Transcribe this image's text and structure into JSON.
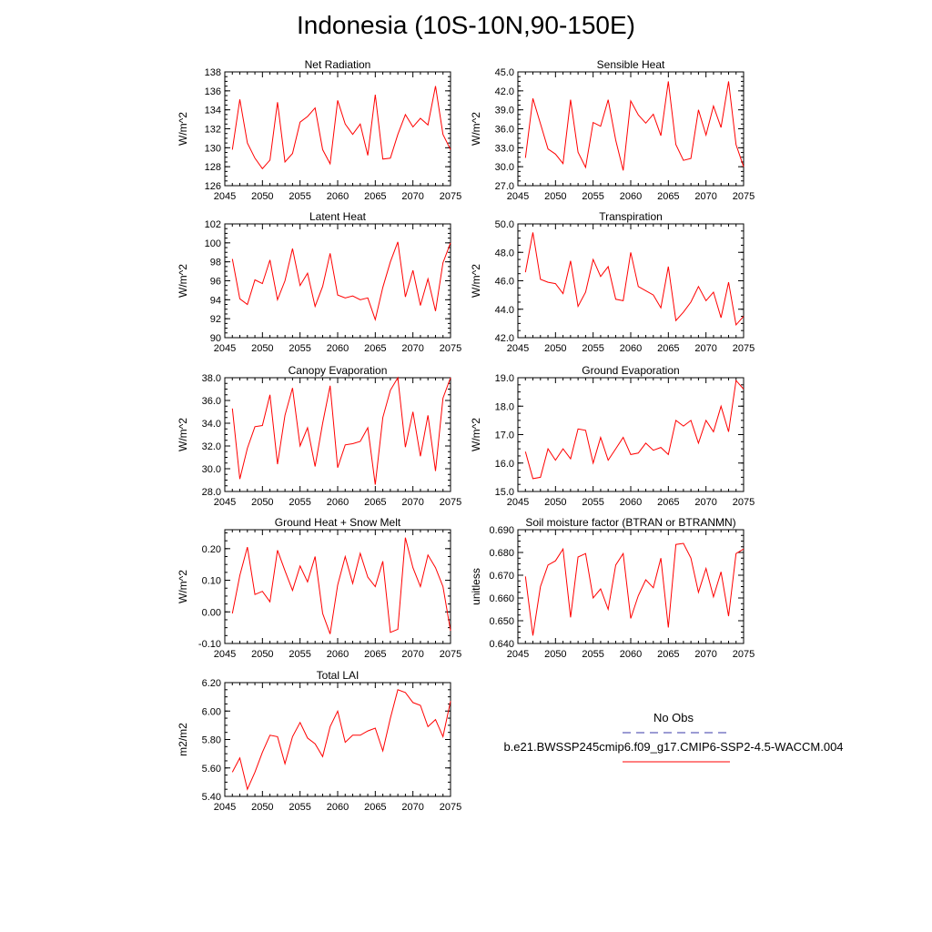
{
  "page_title": "Indonesia (10S-10N,90-150E)",
  "legend": {
    "obs_label": "No Obs",
    "obs_color": "#3a3aa8",
    "model_label": "b.e21.BWSSP245cmip6.f09_g17.CMIP6-SSP2-4.5-WACCM.004",
    "model_color": "#ff0000"
  },
  "chart_data": [
    {
      "type": "line",
      "title": "Net Radiation",
      "ylabel": "W/m^2",
      "xlim": [
        2045,
        2075
      ],
      "ylim": [
        126,
        138
      ],
      "xticks": [
        2045,
        2050,
        2055,
        2060,
        2065,
        2070,
        2075
      ],
      "yticks": [
        "126",
        "128",
        "130",
        "132",
        "134",
        "136",
        "138"
      ],
      "x": [
        2046,
        2047,
        2048,
        2049,
        2050,
        2051,
        2052,
        2053,
        2054,
        2055,
        2056,
        2057,
        2058,
        2059,
        2060,
        2061,
        2062,
        2063,
        2064,
        2065,
        2066,
        2067,
        2068,
        2069,
        2070,
        2071,
        2072,
        2073,
        2074,
        2075
      ],
      "series": [
        {
          "values": [
            129.8,
            135.1,
            130.5,
            128.9,
            127.8,
            128.7,
            134.8,
            128.5,
            129.4,
            132.7,
            133.3,
            134.2,
            129.8,
            128.3,
            135.0,
            132.5,
            131.4,
            132.5,
            129.2,
            135.6,
            128.8,
            128.9,
            131.4,
            133.5,
            132.2,
            133.1,
            132.4,
            136.5,
            131.4,
            129.8
          ]
        }
      ]
    },
    {
      "type": "line",
      "title": "Sensible Heat",
      "ylabel": "W/m^2",
      "xlim": [
        2045,
        2075
      ],
      "ylim": [
        27,
        45
      ],
      "xticks": [
        2045,
        2050,
        2055,
        2060,
        2065,
        2070,
        2075
      ],
      "yticks": [
        "27.0",
        "30.0",
        "33.0",
        "36.0",
        "39.0",
        "42.0",
        "45.0"
      ],
      "x": [
        2046,
        2047,
        2048,
        2049,
        2050,
        2051,
        2052,
        2053,
        2054,
        2055,
        2056,
        2057,
        2058,
        2059,
        2060,
        2061,
        2062,
        2063,
        2064,
        2065,
        2066,
        2067,
        2068,
        2069,
        2070,
        2071,
        2072,
        2073,
        2074,
        2075
      ],
      "series": [
        {
          "values": [
            31.4,
            40.8,
            36.8,
            32.8,
            32.0,
            30.5,
            40.6,
            32.3,
            29.9,
            37.0,
            36.4,
            40.6,
            34.2,
            29.4,
            40.4,
            38.2,
            36.9,
            38.3,
            34.9,
            43.5,
            33.5,
            31.0,
            31.3,
            39.0,
            35.0,
            39.6,
            36.2,
            43.5,
            33.5,
            30.0
          ]
        }
      ]
    },
    {
      "type": "line",
      "title": "Latent Heat",
      "ylabel": "W/m^2",
      "xlim": [
        2045,
        2075
      ],
      "ylim": [
        90,
        102
      ],
      "xticks": [
        2045,
        2050,
        2055,
        2060,
        2065,
        2070,
        2075
      ],
      "yticks": [
        "90",
        "92",
        "94",
        "96",
        "98",
        "100",
        "102"
      ],
      "x": [
        2046,
        2047,
        2048,
        2049,
        2050,
        2051,
        2052,
        2053,
        2054,
        2055,
        2056,
        2057,
        2058,
        2059,
        2060,
        2061,
        2062,
        2063,
        2064,
        2065,
        2066,
        2067,
        2068,
        2069,
        2070,
        2071,
        2072,
        2073,
        2074,
        2075
      ],
      "series": [
        {
          "values": [
            98.3,
            94.1,
            93.5,
            96.1,
            95.7,
            98.2,
            94.0,
            96.0,
            99.4,
            95.5,
            96.8,
            93.3,
            95.4,
            98.9,
            94.5,
            94.2,
            94.4,
            94.0,
            94.2,
            91.9,
            95.3,
            98.0,
            100.1,
            94.3,
            97.1,
            93.4,
            96.2,
            92.8,
            97.9,
            100.0
          ]
        }
      ]
    },
    {
      "type": "line",
      "title": "Transpiration",
      "ylabel": "W/m^2",
      "xlim": [
        2045,
        2075
      ],
      "ylim": [
        42,
        50
      ],
      "xticks": [
        2045,
        2050,
        2055,
        2060,
        2065,
        2070,
        2075
      ],
      "yticks": [
        "42.0",
        "44.0",
        "46.0",
        "48.0",
        "50.0"
      ],
      "x": [
        2046,
        2047,
        2048,
        2049,
        2050,
        2051,
        2052,
        2053,
        2054,
        2055,
        2056,
        2057,
        2058,
        2059,
        2060,
        2061,
        2062,
        2063,
        2064,
        2065,
        2066,
        2067,
        2068,
        2069,
        2070,
        2071,
        2072,
        2073,
        2074,
        2075
      ],
      "series": [
        {
          "values": [
            46.6,
            49.4,
            46.1,
            45.9,
            45.8,
            45.1,
            47.4,
            44.2,
            45.2,
            47.5,
            46.3,
            47.0,
            44.7,
            44.6,
            48.0,
            45.6,
            45.3,
            45.0,
            44.1,
            47.0,
            43.2,
            43.8,
            44.5,
            45.6,
            44.6,
            45.2,
            43.4,
            45.9,
            42.9,
            43.5
          ]
        }
      ]
    },
    {
      "type": "line",
      "title": "Canopy Evaporation",
      "ylabel": "W/m^2",
      "xlim": [
        2045,
        2075
      ],
      "ylim": [
        28,
        38
      ],
      "xticks": [
        2045,
        2050,
        2055,
        2060,
        2065,
        2070,
        2075
      ],
      "yticks": [
        "28.0",
        "30.0",
        "32.0",
        "34.0",
        "36.0",
        "38.0"
      ],
      "x": [
        2046,
        2047,
        2048,
        2049,
        2050,
        2051,
        2052,
        2053,
        2054,
        2055,
        2056,
        2057,
        2058,
        2059,
        2060,
        2061,
        2062,
        2063,
        2064,
        2065,
        2066,
        2067,
        2068,
        2069,
        2070,
        2071,
        2072,
        2073,
        2074,
        2075
      ],
      "series": [
        {
          "values": [
            35.3,
            29.1,
            31.8,
            33.7,
            33.8,
            36.5,
            30.4,
            34.7,
            37.1,
            32.0,
            33.6,
            30.2,
            34.0,
            37.3,
            30.1,
            32.1,
            32.2,
            32.4,
            33.6,
            28.6,
            34.5,
            36.9,
            38.0,
            31.9,
            35.0,
            31.1,
            34.7,
            29.8,
            36.2,
            38.0
          ]
        }
      ]
    },
    {
      "type": "line",
      "title": "Ground Evaporation",
      "ylabel": "W/m^2",
      "xlim": [
        2045,
        2075
      ],
      "ylim": [
        15,
        19
      ],
      "xticks": [
        2045,
        2050,
        2055,
        2060,
        2065,
        2070,
        2075
      ],
      "yticks": [
        "15.0",
        "16.0",
        "17.0",
        "18.0",
        "19.0"
      ],
      "x": [
        2046,
        2047,
        2048,
        2049,
        2050,
        2051,
        2052,
        2053,
        2054,
        2055,
        2056,
        2057,
        2058,
        2059,
        2060,
        2061,
        2062,
        2063,
        2064,
        2065,
        2066,
        2067,
        2068,
        2069,
        2070,
        2071,
        2072,
        2073,
        2074,
        2075
      ],
      "series": [
        {
          "values": [
            16.4,
            15.45,
            15.5,
            16.5,
            16.1,
            16.5,
            16.15,
            17.2,
            17.15,
            16.0,
            16.9,
            16.1,
            16.5,
            16.9,
            16.3,
            16.35,
            16.7,
            16.45,
            16.55,
            16.3,
            17.5,
            17.3,
            17.5,
            16.7,
            17.5,
            17.1,
            18.0,
            17.1,
            18.9,
            18.6
          ]
        }
      ]
    },
    {
      "type": "line",
      "title": "Ground Heat + Snow Melt",
      "ylabel": "W/m^2",
      "xlim": [
        2045,
        2075
      ],
      "ylim": [
        -0.1,
        0.26
      ],
      "xticks": [
        2045,
        2050,
        2055,
        2060,
        2065,
        2070,
        2075
      ],
      "yticks": [
        "-0.10",
        "0.00",
        "0.10",
        "0.20"
      ],
      "x": [
        2046,
        2047,
        2048,
        2049,
        2050,
        2051,
        2052,
        2053,
        2054,
        2055,
        2056,
        2057,
        2058,
        2059,
        2060,
        2061,
        2062,
        2063,
        2064,
        2065,
        2066,
        2067,
        2068,
        2069,
        2070,
        2071,
        2072,
        2073,
        2074,
        2075
      ],
      "series": [
        {
          "values": [
            -0.005,
            0.115,
            0.205,
            0.055,
            0.065,
            0.032,
            0.195,
            0.13,
            0.068,
            0.145,
            0.095,
            0.175,
            -0.005,
            -0.07,
            0.085,
            0.175,
            0.09,
            0.185,
            0.11,
            0.08,
            0.16,
            -0.065,
            -0.055,
            0.235,
            0.14,
            0.08,
            0.18,
            0.14,
            0.08,
            -0.06
          ]
        }
      ]
    },
    {
      "type": "line",
      "title": "Soil moisture factor (BTRAN or BTRANMN)",
      "ylabel": "unitless",
      "xlim": [
        2045,
        2075
      ],
      "ylim": [
        0.64,
        0.69
      ],
      "xticks": [
        2045,
        2050,
        2055,
        2060,
        2065,
        2070,
        2075
      ],
      "yticks": [
        "0.640",
        "0.650",
        "0.660",
        "0.670",
        "0.680",
        "0.690"
      ],
      "x": [
        2046,
        2047,
        2048,
        2049,
        2050,
        2051,
        2052,
        2053,
        2054,
        2055,
        2056,
        2057,
        2058,
        2059,
        2060,
        2061,
        2062,
        2063,
        2064,
        2065,
        2066,
        2067,
        2068,
        2069,
        2070,
        2071,
        2072,
        2073,
        2074,
        2075
      ],
      "series": [
        {
          "values": [
            0.6695,
            0.6435,
            0.665,
            0.6745,
            0.6763,
            0.6815,
            0.6515,
            0.678,
            0.6795,
            0.66,
            0.664,
            0.655,
            0.6745,
            0.6795,
            0.651,
            0.661,
            0.668,
            0.6645,
            0.6775,
            0.647,
            0.6835,
            0.684,
            0.6775,
            0.6625,
            0.673,
            0.6605,
            0.6715,
            0.652,
            0.6795,
            0.6815
          ]
        }
      ]
    },
    {
      "type": "line",
      "title": "Total LAI",
      "ylabel": "m2/m2",
      "xlim": [
        2045,
        2075
      ],
      "ylim": [
        5.4,
        6.2
      ],
      "xticks": [
        2045,
        2050,
        2055,
        2060,
        2065,
        2070,
        2075
      ],
      "yticks": [
        "5.40",
        "5.60",
        "5.80",
        "6.00",
        "6.20"
      ],
      "x": [
        2046,
        2047,
        2048,
        2049,
        2050,
        2051,
        2052,
        2053,
        2054,
        2055,
        2056,
        2057,
        2058,
        2059,
        2060,
        2061,
        2062,
        2063,
        2064,
        2065,
        2066,
        2067,
        2068,
        2069,
        2070,
        2071,
        2072,
        2073,
        2074,
        2075
      ],
      "series": [
        {
          "values": [
            5.57,
            5.67,
            5.45,
            5.57,
            5.71,
            5.83,
            5.82,
            5.63,
            5.82,
            5.92,
            5.81,
            5.77,
            5.68,
            5.89,
            6.0,
            5.78,
            5.83,
            5.83,
            5.86,
            5.88,
            5.72,
            5.95,
            6.15,
            6.13,
            6.06,
            6.04,
            5.89,
            5.94,
            5.82,
            6.07
          ]
        }
      ]
    }
  ]
}
